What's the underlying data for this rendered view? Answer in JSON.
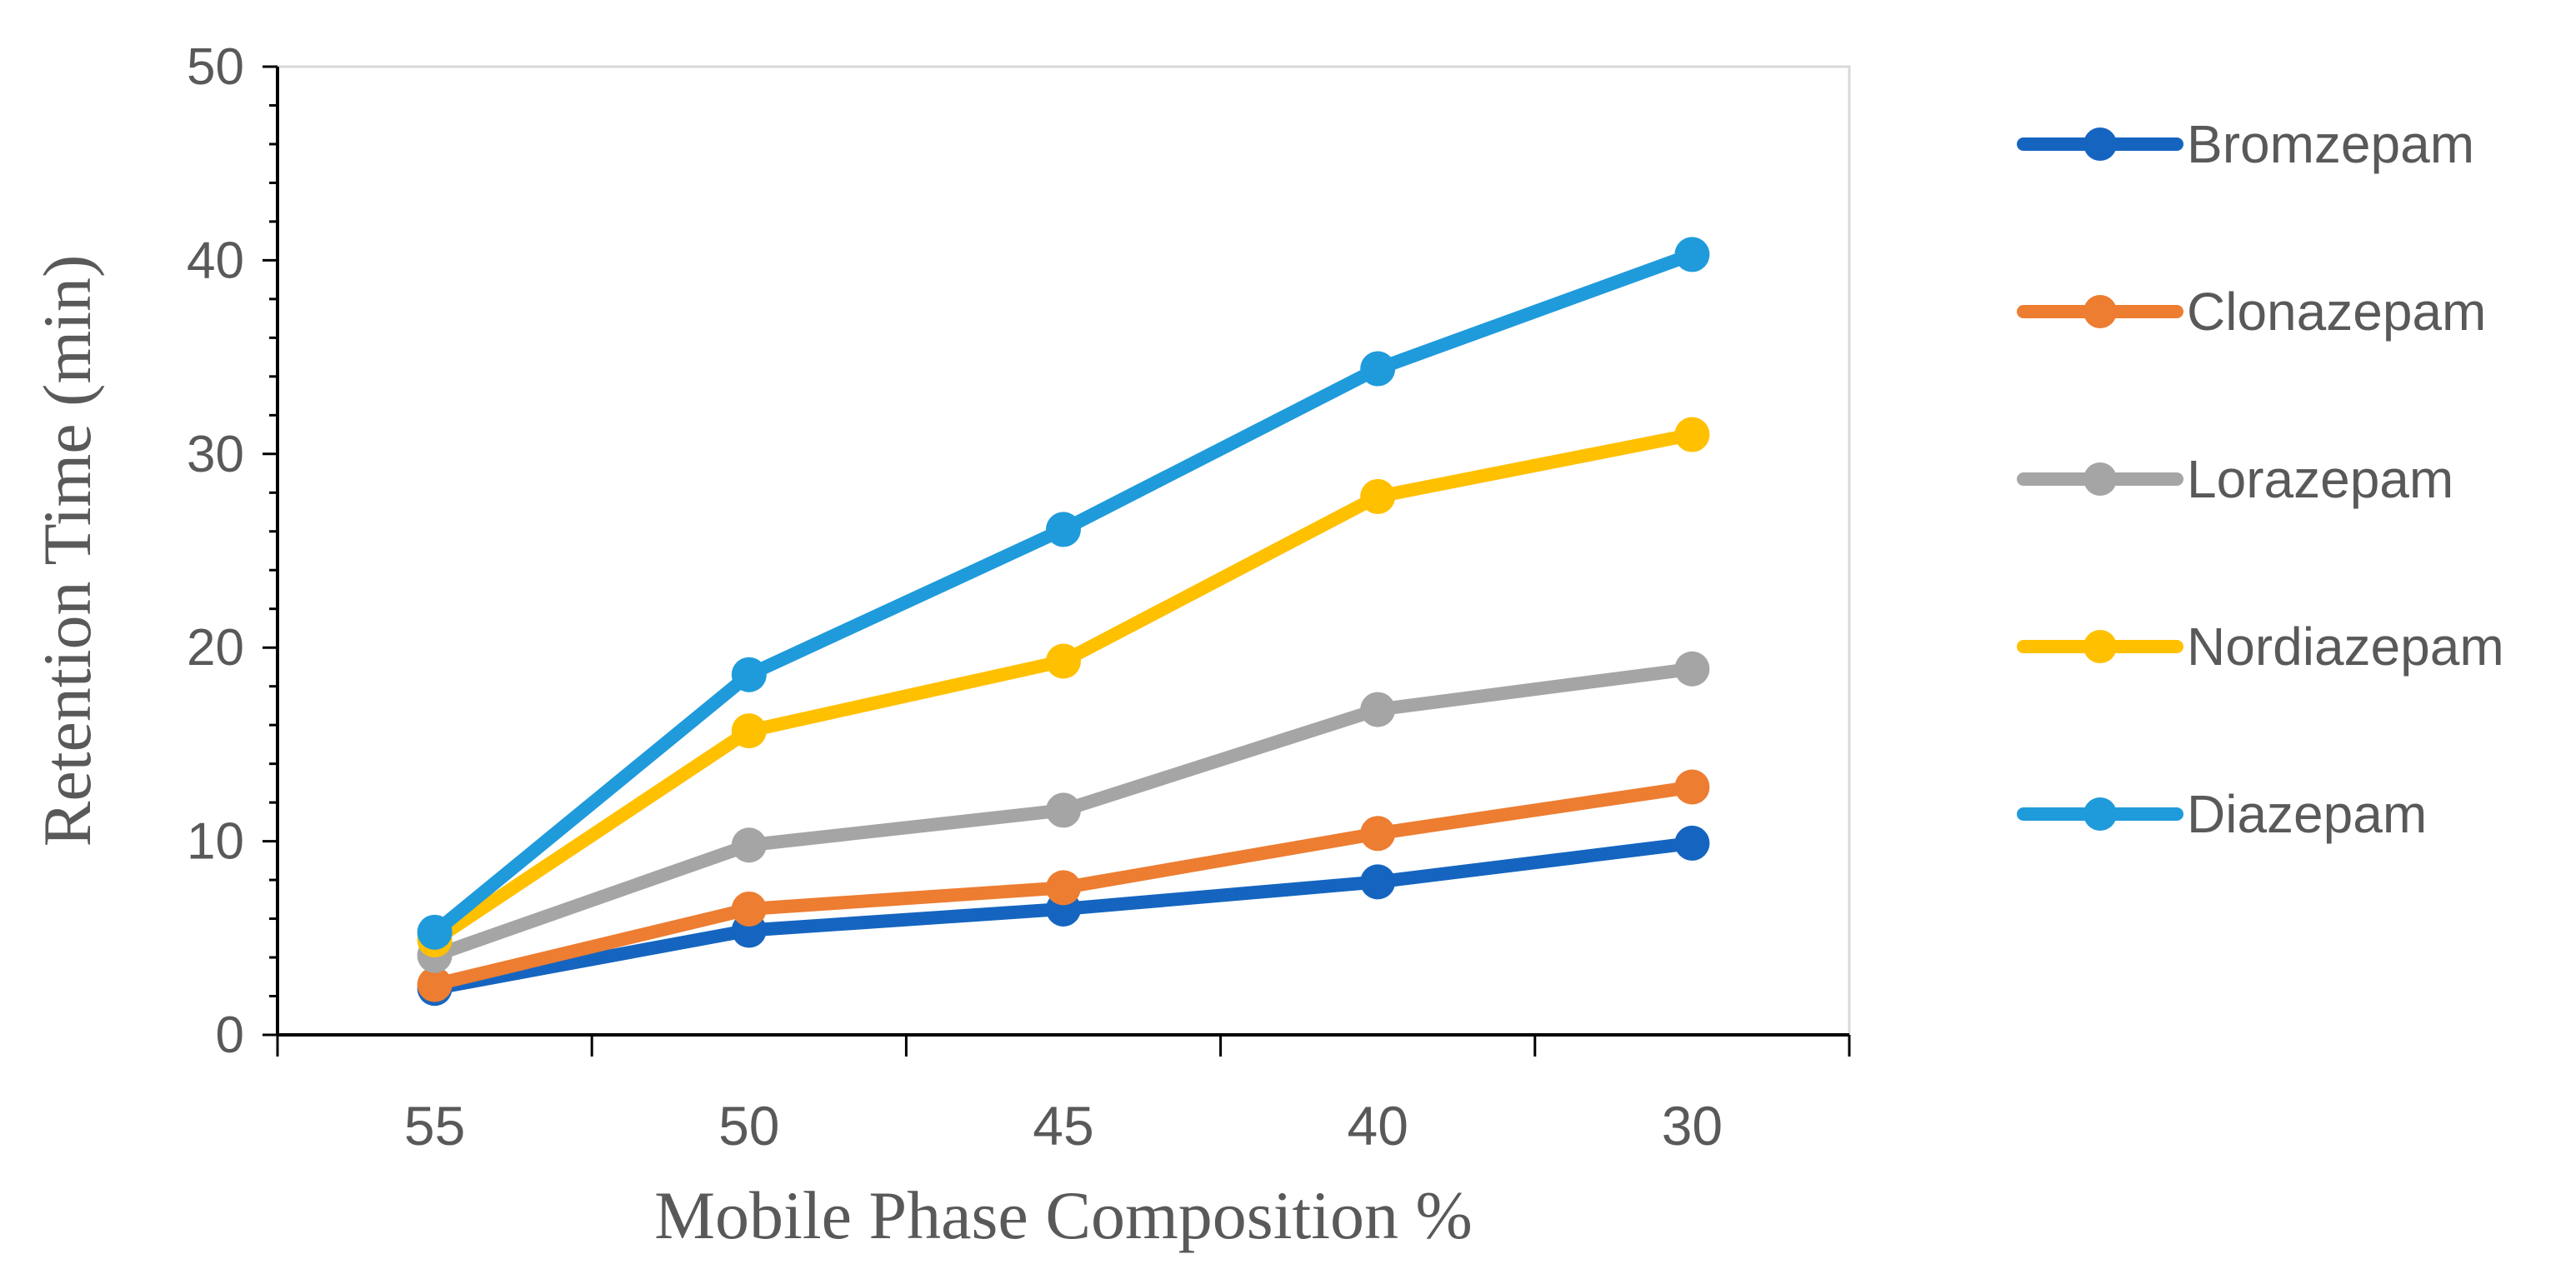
{
  "chart_data": {
    "type": "line",
    "title": "",
    "xlabel": "Mobile Phase Composition %",
    "ylabel": "Retention Time (min)",
    "categories": [
      "55",
      "50",
      "45",
      "40",
      "30"
    ],
    "ylim": [
      0,
      50
    ],
    "yticks": [
      "0",
      "10",
      "20",
      "30",
      "40",
      "50"
    ],
    "grid": false,
    "legend_position": "right",
    "series": [
      {
        "name": "Bromzepam",
        "color": "#1565C0",
        "values": [
          2.4,
          5.4,
          6.5,
          7.9,
          9.9
        ]
      },
      {
        "name": "Clonazepam",
        "color": "#ED7D31",
        "values": [
          2.6,
          6.5,
          7.6,
          10.4,
          12.8
        ]
      },
      {
        "name": "Lorazepam",
        "color": "#A5A5A5",
        "values": [
          4.1,
          9.8,
          11.6,
          16.8,
          18.9
        ]
      },
      {
        "name": "Nordiazepam",
        "color": "#FFC000",
        "values": [
          4.9,
          15.7,
          19.3,
          27.8,
          31.0
        ]
      },
      {
        "name": "Diazepam",
        "color": "#1F9BDB",
        "values": [
          5.3,
          18.6,
          26.1,
          34.4,
          40.3
        ]
      }
    ]
  }
}
